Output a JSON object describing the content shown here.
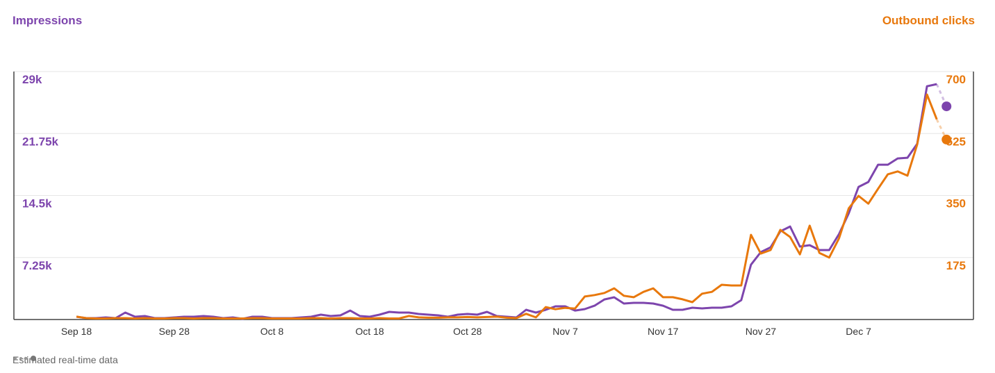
{
  "colors": {
    "impressions": "#7d45ad",
    "clicks": "#e8780c",
    "grid": "#e6e6e6",
    "axis": "#444444"
  },
  "chart_data": {
    "type": "line",
    "title": "",
    "left_axis_label": "Impressions",
    "right_axis_label": "Outbound clicks",
    "left_ylim": [
      0,
      29000
    ],
    "right_ylim": [
      0,
      700
    ],
    "left_ticks": [
      "7.25k",
      "14.5k",
      "21.75k",
      "29k"
    ],
    "left_tick_values": [
      7250,
      14500,
      21750,
      29000
    ],
    "right_ticks": [
      "175",
      "350",
      "525",
      "700"
    ],
    "right_tick_values": [
      175,
      350,
      525,
      700
    ],
    "x_start": "Sep 18",
    "x_tick_labels": [
      "Sep 18",
      "Sep 28",
      "Oct 8",
      "Oct 18",
      "Oct 28",
      "Nov 7",
      "Nov 17",
      "Nov 27",
      "Dec 7"
    ],
    "x_tick_day_index": [
      0,
      10,
      20,
      30,
      40,
      50,
      60,
      70,
      80
    ],
    "grid": true,
    "series": [
      {
        "name": "Impressions",
        "axis": "left",
        "values": [
          325,
          160,
          160,
          245,
          160,
          810,
          325,
          405,
          160,
          160,
          245,
          325,
          325,
          405,
          325,
          160,
          245,
          80,
          325,
          325,
          160,
          160,
          160,
          245,
          325,
          570,
          405,
          490,
          1050,
          405,
          325,
          570,
          890,
          810,
          810,
          650,
          570,
          490,
          325,
          570,
          650,
          570,
          890,
          405,
          325,
          245,
          1140,
          810,
          1140,
          1540,
          1540,
          1050,
          1220,
          1620,
          2350,
          2600,
          1870,
          1950,
          1950,
          1870,
          1620,
          1140,
          1140,
          1380,
          1300,
          1380,
          1380,
          1540,
          2270,
          6410,
          7880,
          8440,
          10310,
          10880,
          8530,
          8690,
          8120,
          8120,
          9990,
          12420,
          15510,
          16080,
          18110,
          18110,
          18840,
          18920,
          20540,
          27280,
          27530
        ],
        "estimated": 24930
      },
      {
        "name": "Outbound clicks",
        "axis": "right",
        "values": [
          8,
          4,
          3,
          3,
          4,
          4,
          3,
          4,
          3,
          3,
          4,
          4,
          3,
          4,
          4,
          3,
          3,
          3,
          4,
          4,
          3,
          3,
          3,
          3,
          4,
          4,
          3,
          4,
          4,
          3,
          3,
          4,
          3,
          3,
          10,
          6,
          5,
          5,
          6,
          6,
          7,
          6,
          7,
          8,
          5,
          4,
          16,
          6,
          35,
          29,
          33,
          31,
          65,
          69,
          75,
          88,
          67,
          63,
          78,
          88,
          63,
          63,
          57,
          49,
          73,
          78,
          98,
          96,
          96,
          239,
          186,
          196,
          253,
          233,
          184,
          265,
          188,
          175,
          229,
          314,
          349,
          327,
          369,
          410,
          418,
          406,
          494,
          635,
          565
        ],
        "estimated": 508
      }
    ],
    "legend": {
      "label": "Estimated real-time data",
      "placement": "bottom-left"
    }
  }
}
